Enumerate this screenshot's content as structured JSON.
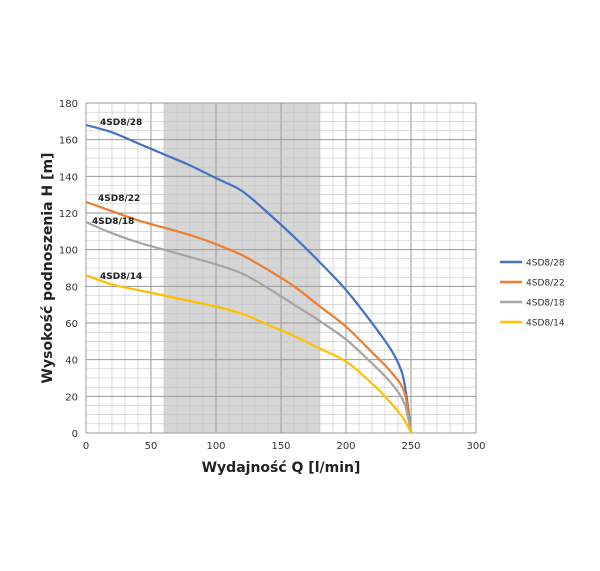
{
  "chart_data": {
    "type": "line",
    "title": "",
    "xlabel": "Wydajność Q [l/min]",
    "ylabel": "Wysokość podnoszenia H [m]",
    "xlim": [
      0,
      300
    ],
    "ylim": [
      0,
      180
    ],
    "xticks": [
      0,
      50,
      100,
      150,
      200,
      250,
      300
    ],
    "yticks": [
      0,
      20,
      40,
      60,
      80,
      100,
      120,
      140,
      160,
      180
    ],
    "grid": true,
    "shaded_region_x": [
      60,
      180
    ],
    "legend_position": "right",
    "series": [
      {
        "name": "4SD8/28",
        "color": "#4472C4",
        "x": [
          0,
          20,
          40,
          60,
          80,
          100,
          120,
          140,
          160,
          180,
          200,
          220,
          235,
          243,
          247,
          250
        ],
        "y": [
          168,
          164,
          158,
          152,
          146,
          139,
          132,
          120,
          107,
          93,
          78,
          60,
          45,
          33,
          18,
          0
        ]
      },
      {
        "name": "4SD8/22",
        "color": "#ED7D31",
        "x": [
          0,
          20,
          40,
          60,
          80,
          100,
          120,
          140,
          160,
          180,
          200,
          220,
          235,
          245,
          250
        ],
        "y": [
          126,
          121,
          116,
          112,
          108,
          103,
          97,
          89,
          80,
          69,
          58,
          44,
          33,
          22,
          0
        ]
      },
      {
        "name": "4SD8/18",
        "color": "#A5A5A5",
        "x": [
          0,
          20,
          40,
          60,
          80,
          100,
          120,
          140,
          160,
          180,
          200,
          220,
          235,
          245,
          250
        ],
        "y": [
          115,
          109,
          104,
          100,
          96,
          92,
          87,
          79,
          70,
          61,
          51,
          38,
          27,
          16,
          0
        ]
      },
      {
        "name": "4SD8/14",
        "color": "#FFC000",
        "x": [
          0,
          20,
          40,
          60,
          80,
          100,
          120,
          140,
          160,
          180,
          200,
          220,
          235,
          245,
          250
        ],
        "y": [
          86,
          81,
          78,
          75,
          72,
          69,
          65,
          59,
          53,
          46,
          39,
          27,
          16,
          7,
          0
        ]
      }
    ]
  }
}
